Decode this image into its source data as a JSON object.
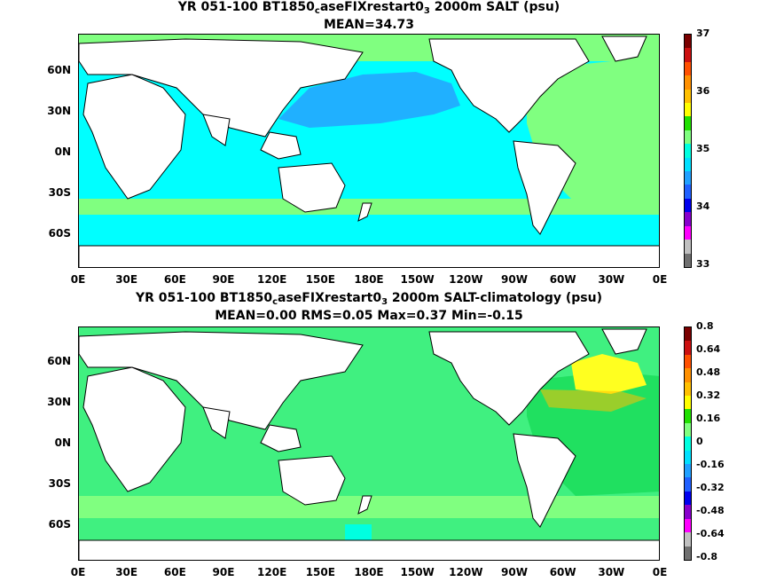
{
  "panels": [
    {
      "title_pre": "YR 051-100 BT1850",
      "title_sub1": "c",
      "title_mid": "aseFIXrestart0",
      "title_sub2": "3",
      "title_post": " 2000m SALT (psu)",
      "stats": "MEAN=34.73",
      "lat_labels": [
        "60N",
        "30N",
        "0N",
        "30S",
        "60S"
      ],
      "lon_labels": [
        "0E",
        "30E",
        "60E",
        "90E",
        "120E",
        "150E",
        "180E",
        "150W",
        "120W",
        "90W",
        "60W",
        "30W",
        "0E"
      ],
      "colorbar": {
        "ticks": [
          "37",
          "36",
          "35",
          "34",
          "33"
        ],
        "colors": [
          "#7a0000",
          "#cc1010",
          "#ff5000",
          "#ff9000",
          "#ffc000",
          "#ffff00",
          "#20e000",
          "#80ff80",
          "#00ffe0",
          "#00e0ff",
          "#20a0ff",
          "#2060ff",
          "#0000ee",
          "#8800cc",
          "#ff00ff",
          "#c0c0c0",
          "#707070"
        ]
      },
      "palette": {
        "ocean_main": "#00ffff",
        "north_pacific": "#20b0ff",
        "atlantic": "#80ff80",
        "southern_band": "#80ff80"
      }
    },
    {
      "title_pre": "YR 051-100 BT1850",
      "title_sub1": "c",
      "title_mid": "aseFIXrestart0",
      "title_sub2": "3",
      "title_post": " 2000m SALT-climatology (psu)",
      "stats": "MEAN=0.00   RMS=0.05   Max=0.37   Min=-0.15",
      "lat_labels": [
        "60N",
        "30N",
        "0N",
        "30S",
        "60S"
      ],
      "lon_labels": [
        "0E",
        "30E",
        "60E",
        "90E",
        "120E",
        "150E",
        "180E",
        "150W",
        "120W",
        "90W",
        "60W",
        "30W",
        "0E"
      ],
      "colorbar": {
        "ticks": [
          "0.8",
          "0.64",
          "0.48",
          "0.32",
          "0.16",
          "0",
          "-0.16",
          "-0.32",
          "-0.48",
          "-0.64",
          "-0.8"
        ],
        "colors": [
          "#7a0000",
          "#cc1010",
          "#ff5000",
          "#ff9000",
          "#ffc000",
          "#ffff00",
          "#20e000",
          "#80ff80",
          "#00ffe0",
          "#00e0ff",
          "#20a0ff",
          "#2060ff",
          "#0000ee",
          "#8800cc",
          "#ff00ff",
          "#c0c0c0",
          "#707070"
        ]
      },
      "palette": {
        "ocean_main": "#40f080",
        "north_atlantic_high": "#ffff20",
        "atlantic": "#20e060",
        "southern_band": "#80ff80"
      }
    }
  ]
}
